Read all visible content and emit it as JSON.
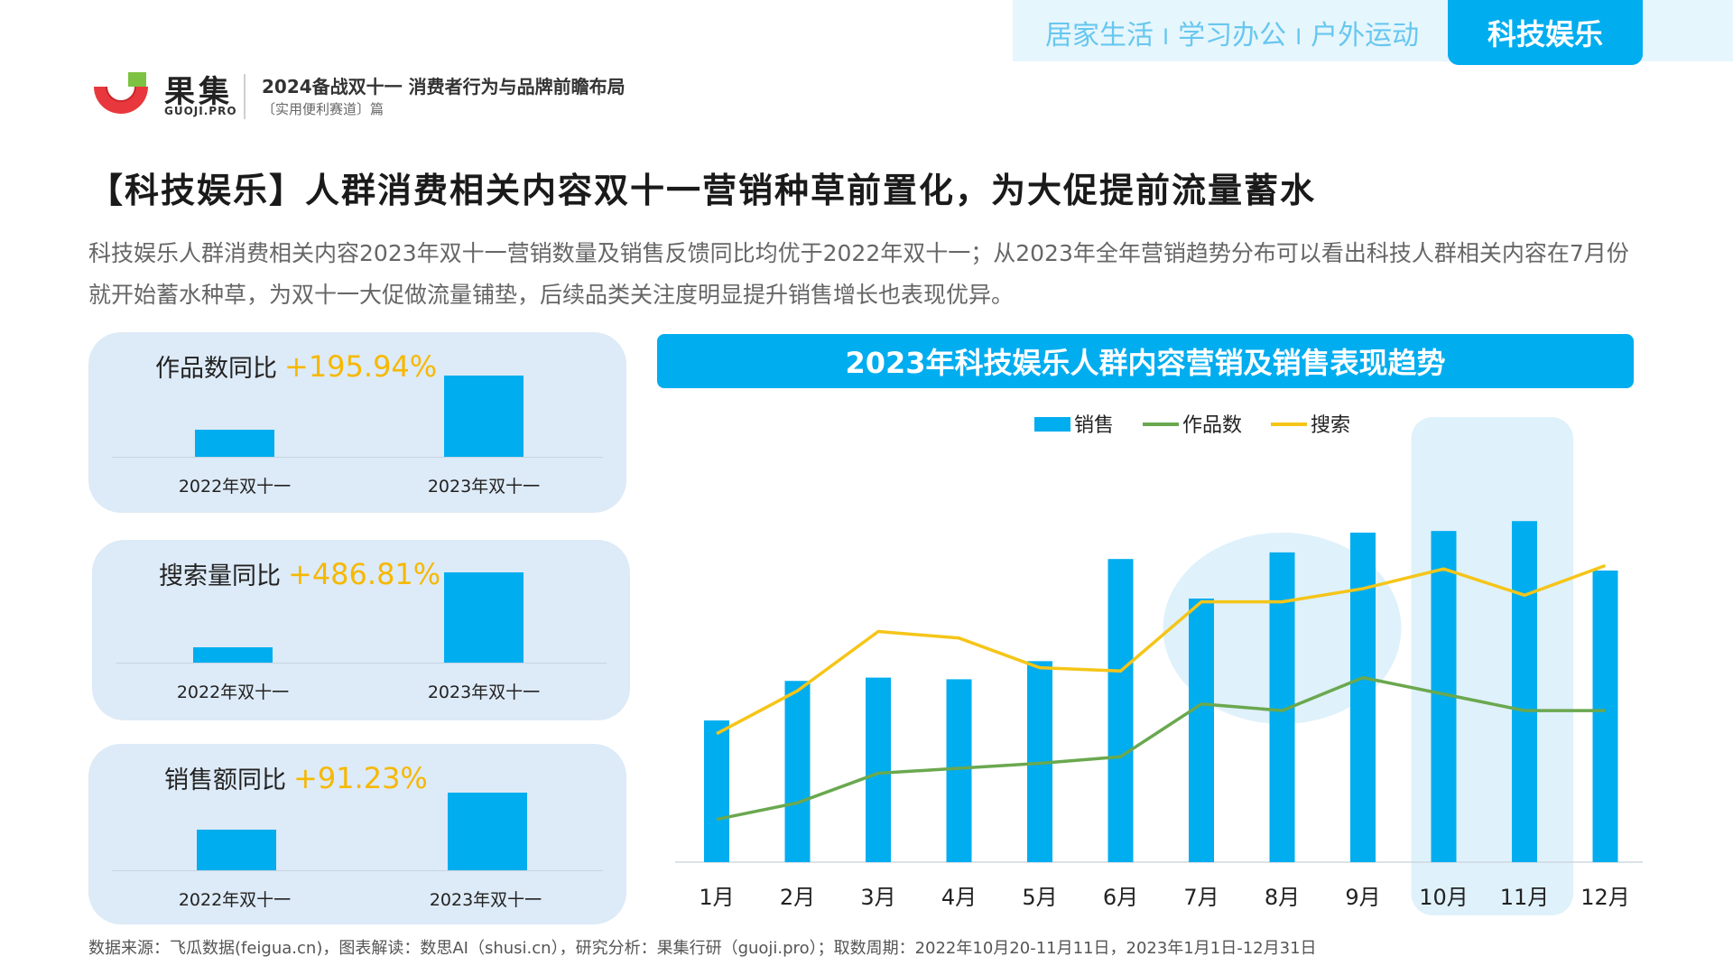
{
  "header": {
    "brand_name": "果集",
    "brand_domain": "GUOJI.PRO",
    "report_title": "2024备战双十一 消费者行为与品牌前瞻布局",
    "report_subtitle": "〔实用便利赛道〕篇"
  },
  "nav": {
    "categories": [
      "居家生活",
      "学习办公",
      "户外运动"
    ],
    "separator": "I",
    "active": "科技娱乐"
  },
  "main_title": "【科技娱乐】人群消费相关内容双十一营销种草前置化，为大促提前流量蓄水",
  "description": "科技娱乐人群消费相关内容2023年双十一营销数量及销售反馈同比均优于2022年双十一；从2023年全年营销趋势分布可以看出科技人群相关内容在7月份就开始蓄水种草，为双十一大促做流量铺垫，后续品类关注度明显提升销售增长也表现优异。",
  "footnote": "数据来源：飞瓜数据(feigua.cn)，图表解读：数思AI（shusi.cn），研究分析：果集行研（guoji.pro）；取数周期：2022年10月20-11月11日，2023年1月1日-12月31日",
  "colors": {
    "accent": "#00adef",
    "highlight_yellow": "#f6b800",
    "works_line": "#6aa84f",
    "search_line": "#f5c518",
    "card_bg": "#ddeaf7"
  },
  "chart_data": [
    {
      "type": "bar",
      "title": "作品数同比",
      "growth": "+195.94%",
      "categories": [
        "2022年双十一",
        "2023年双十一"
      ],
      "values": [
        1,
        2.96
      ]
    },
    {
      "type": "bar",
      "title": "搜索量同比",
      "growth": "+486.81%",
      "categories": [
        "2022年双十一",
        "2023年双十一"
      ],
      "values": [
        1,
        5.87
      ]
    },
    {
      "type": "bar",
      "title": "销售额同比",
      "growth": "+91.23%",
      "categories": [
        "2022年双十一",
        "2023年双十一"
      ],
      "values": [
        1,
        1.91
      ]
    },
    {
      "type": "bar+line",
      "title": "2023年科技娱乐人群内容营销及销售表现趋势",
      "legend_position": "top-center",
      "categories": [
        "1月",
        "2月",
        "3月",
        "4月",
        "5月",
        "6月",
        "7月",
        "8月",
        "9月",
        "10月",
        "11月",
        "12月"
      ],
      "series": [
        {
          "name": "销售",
          "type": "bar",
          "color": "#00adef",
          "values": [
            0.43,
            0.55,
            0.56,
            0.555,
            0.61,
            0.92,
            0.8,
            0.94,
            1.0,
            1.005,
            1.035,
            0.885
          ]
        },
        {
          "name": "作品数",
          "type": "line",
          "color": "#6aa84f",
          "values": [
            0.13,
            0.18,
            0.27,
            0.285,
            0.3,
            0.32,
            0.48,
            0.46,
            0.56,
            0.51,
            0.46,
            0.46
          ]
        },
        {
          "name": "搜索",
          "type": "line",
          "color": "#f5c518",
          "values": [
            0.39,
            0.52,
            0.7,
            0.68,
            0.59,
            0.58,
            0.79,
            0.79,
            0.83,
            0.89,
            0.81,
            0.9
          ]
        }
      ],
      "highlight_months": [
        "10月",
        "11月"
      ],
      "highlight_circle_months": [
        "7月",
        "8月",
        "9月"
      ]
    }
  ]
}
